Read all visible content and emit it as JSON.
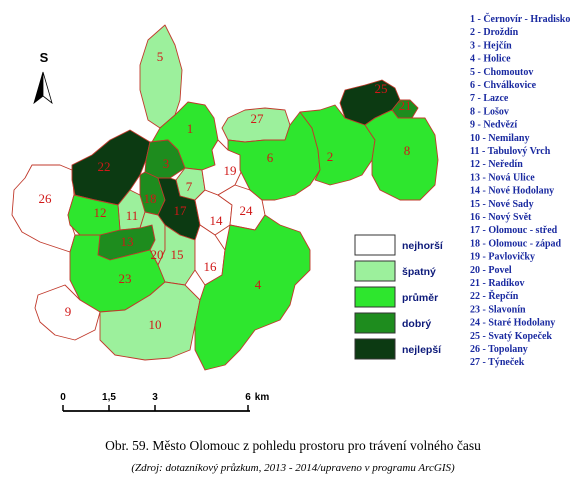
{
  "north_arrow": {
    "label": "S",
    "icon": "north-arrow-icon"
  },
  "categories": {
    "nejhorsi": {
      "label": "nejhorší",
      "color": "#ffffff"
    },
    "spatny": {
      "label": "špatný",
      "color": "#9cf09c"
    },
    "prumer": {
      "label": "průměr",
      "color": "#2ee62e"
    },
    "dobry": {
      "label": "dobrý",
      "color": "#1e8c1e"
    },
    "nejlepsi": {
      "label": "nejlepší",
      "color": "#0c3a12"
    }
  },
  "legend_order": [
    "nejhorsi",
    "spatny",
    "prumer",
    "dobry",
    "nejlepsi"
  ],
  "districts": [
    {
      "num": "1",
      "name": "Černovír - Hradisko",
      "category": "prumer"
    },
    {
      "num": "2",
      "name": "Droždín",
      "category": "prumer"
    },
    {
      "num": "3",
      "name": "Hejčín",
      "category": "dobry"
    },
    {
      "num": "4",
      "name": "Holice",
      "category": "prumer"
    },
    {
      "num": "5",
      "name": "Chomoutov",
      "category": "spatny"
    },
    {
      "num": "6",
      "name": "Chválkovice",
      "category": "prumer"
    },
    {
      "num": "7",
      "name": "Lazce",
      "category": "spatny"
    },
    {
      "num": "8",
      "name": "Lošov",
      "category": "prumer"
    },
    {
      "num": "9",
      "name": "Nedvězí",
      "category": "nejhorsi"
    },
    {
      "num": "10",
      "name": "Nemilany",
      "category": "spatny"
    },
    {
      "num": "11",
      "name": "Tabulový Vrch",
      "category": "spatny"
    },
    {
      "num": "12",
      "name": "Neředín",
      "category": "prumer"
    },
    {
      "num": "13",
      "name": "Nová Ulice",
      "category": "dobry"
    },
    {
      "num": "14",
      "name": "Nové Hodolany",
      "category": "nejhorsi"
    },
    {
      "num": "15",
      "name": "Nové Sady",
      "category": "spatny"
    },
    {
      "num": "16",
      "name": "Nový Svět",
      "category": "nejhorsi"
    },
    {
      "num": "17",
      "name": "Olomouc - střed",
      "category": "nejlepsi"
    },
    {
      "num": "18",
      "name": "Olomouc - západ",
      "category": "dobry"
    },
    {
      "num": "19",
      "name": "Pavlovičky",
      "category": "nejhorsi"
    },
    {
      "num": "20",
      "name": "Povel",
      "category": "spatny"
    },
    {
      "num": "21",
      "name": "Radíkov",
      "category": "dobry"
    },
    {
      "num": "22",
      "name": "Řepčín",
      "category": "nejlepsi"
    },
    {
      "num": "23",
      "name": "Slavonín",
      "category": "prumer"
    },
    {
      "num": "24",
      "name": "Staré Hodolany",
      "category": "nejhorsi"
    },
    {
      "num": "25",
      "name": "Svatý Kopeček",
      "category": "nejlepsi"
    },
    {
      "num": "26",
      "name": "Topolany",
      "category": "nejhorsi"
    },
    {
      "num": "27",
      "name": "Týneček",
      "category": "spatny"
    }
  ],
  "scale_bar": {
    "ticks": [
      "0",
      "1,5",
      "3",
      "6"
    ],
    "unit": "km"
  },
  "caption": "Obr. 59. Město Olomouc z pohledu prostoru pro trávení volného času",
  "source": "(Zdroj: dotazníkový průzkum, 2013 - 2014/upraveno v programu ArcGIS)"
}
